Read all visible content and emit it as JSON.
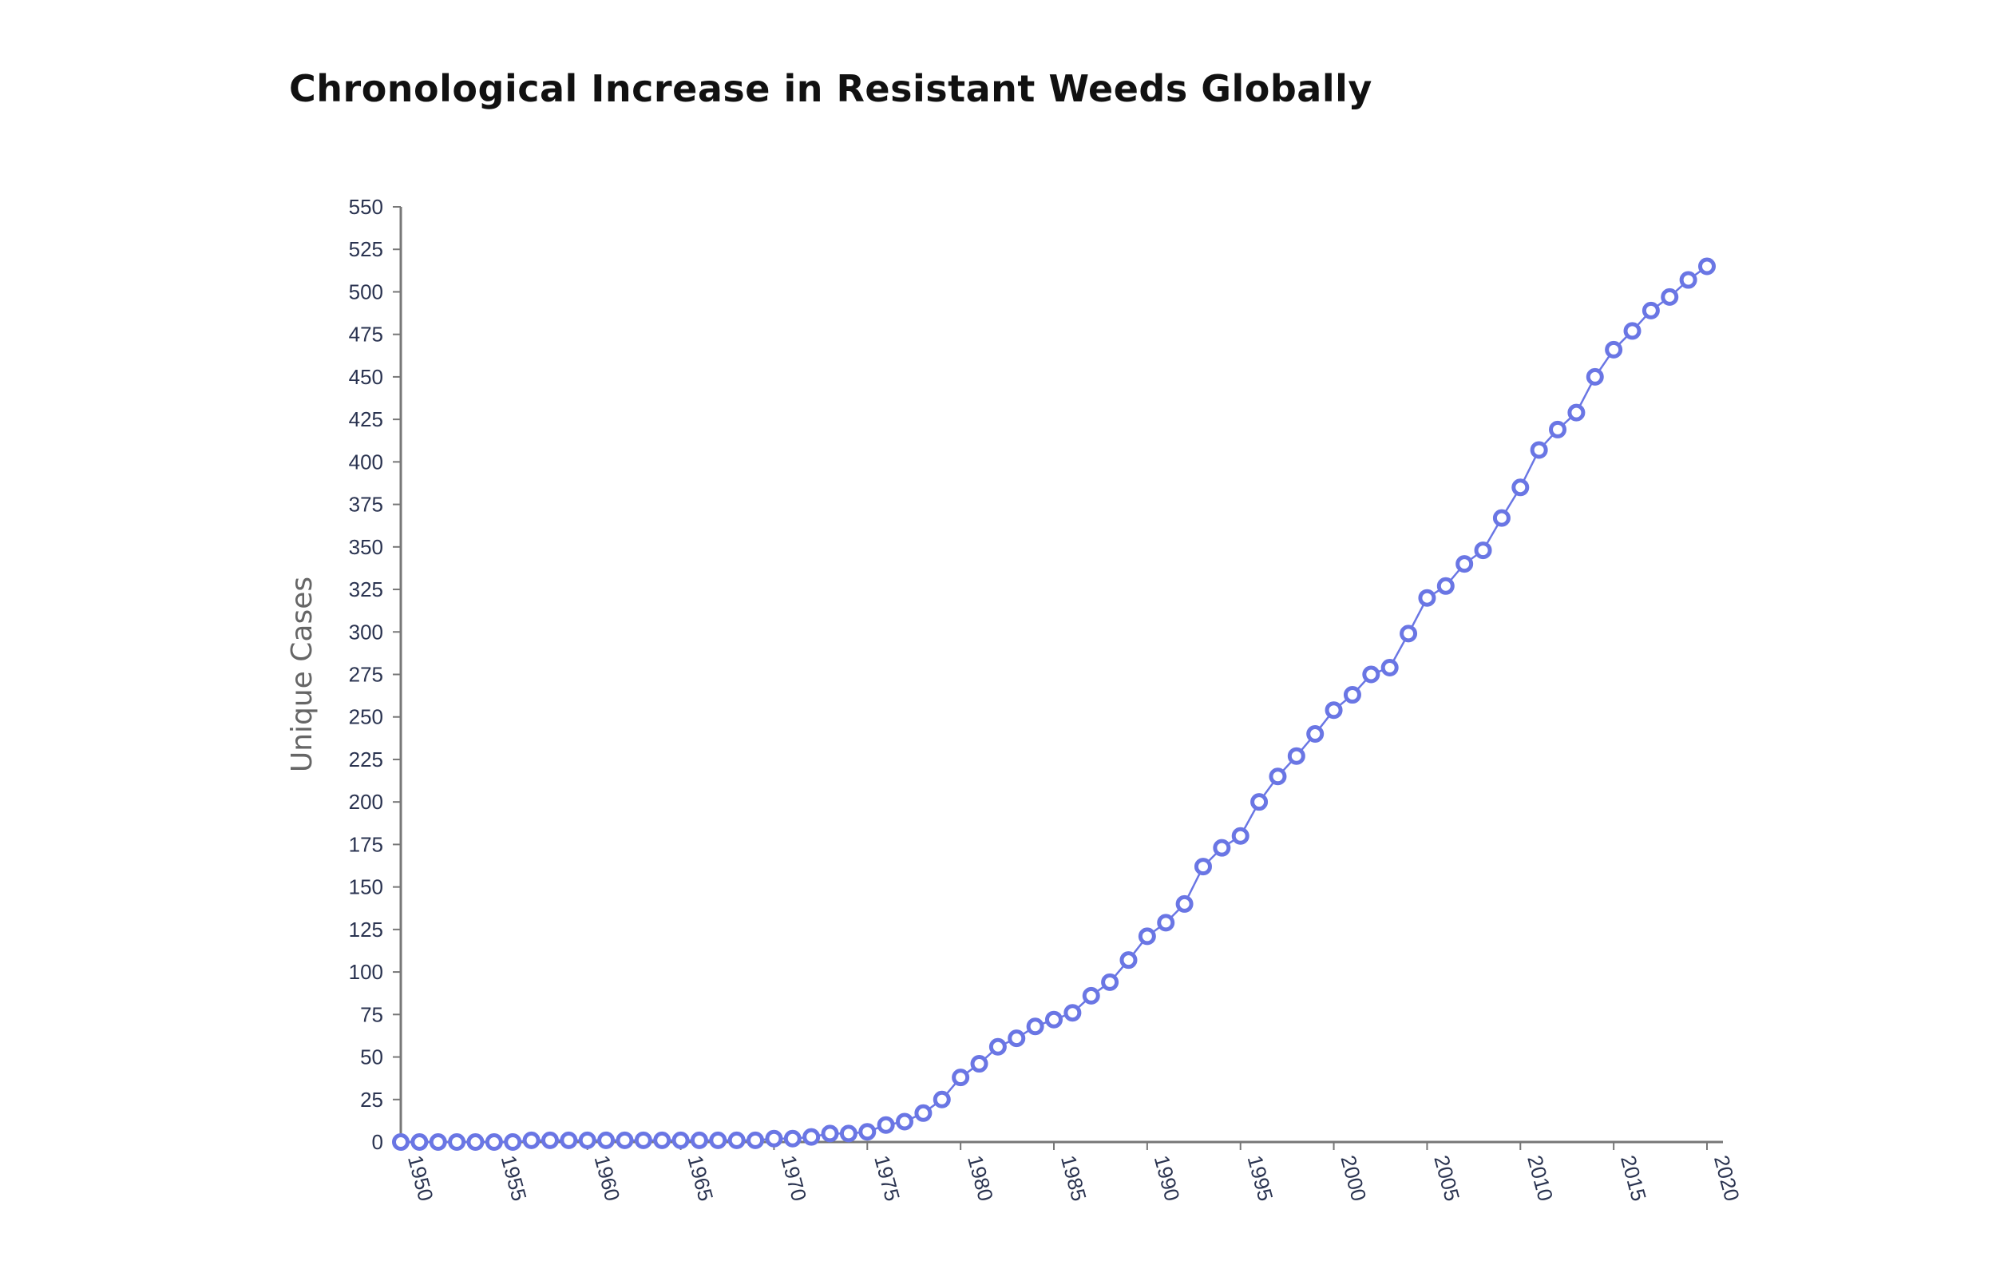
{
  "chart_data": {
    "type": "line",
    "title": "Chronological Increase in Resistant Weeds Globally",
    "xlabel": "",
    "ylabel": "Unique Cases",
    "xlim": [
      1950,
      2020
    ],
    "ylim": [
      0,
      550
    ],
    "x_ticks": [
      "1950",
      "1955",
      "1960",
      "1965",
      "1970",
      "1975",
      "1980",
      "1985",
      "1990",
      "1995",
      "2000",
      "2005",
      "2010",
      "2015",
      "2020"
    ],
    "y_ticks": [
      "0",
      "25",
      "50",
      "75",
      "100",
      "125",
      "150",
      "175",
      "200",
      "225",
      "250",
      "275",
      "300",
      "325",
      "350",
      "375",
      "400",
      "425",
      "450",
      "475",
      "500",
      "525",
      "550"
    ],
    "grid": false,
    "legend": "none",
    "series_color": "#6a76e4",
    "axis_color": "#777777",
    "series": [
      {
        "x": [
          1950,
          1951,
          1952,
          1953,
          1954,
          1955,
          1956,
          1957,
          1958,
          1959,
          1960,
          1961,
          1962,
          1963,
          1964,
          1965,
          1966,
          1967,
          1968,
          1969,
          1970,
          1971,
          1972,
          1973,
          1974,
          1975,
          1976,
          1977,
          1978,
          1979,
          1980,
          1981,
          1982,
          1983,
          1984,
          1985,
          1986,
          1987,
          1988,
          1989,
          1990,
          1991,
          1992,
          1993,
          1994,
          1995,
          1996,
          1997,
          1998,
          1999,
          2000,
          2001,
          2002,
          2003,
          2004,
          2005,
          2006,
          2007,
          2008,
          2009,
          2010,
          2011,
          2012,
          2013,
          2014,
          2015,
          2016,
          2017,
          2018,
          2019,
          2020
        ],
        "values": [
          0,
          0,
          0,
          0,
          0,
          0,
          0,
          1,
          1,
          1,
          1,
          1,
          1,
          1,
          1,
          1,
          1,
          1,
          1,
          1,
          2,
          2,
          3,
          5,
          5,
          6,
          10,
          12,
          17,
          25,
          38,
          46,
          56,
          61,
          68,
          72,
          76,
          86,
          94,
          107,
          121,
          129,
          140,
          162,
          173,
          180,
          200,
          215,
          227,
          240,
          254,
          263,
          275,
          279,
          299,
          320,
          327,
          340,
          348,
          367,
          385,
          407,
          419,
          429,
          450,
          466,
          477,
          489,
          497,
          507,
          515
        ]
      }
    ]
  }
}
